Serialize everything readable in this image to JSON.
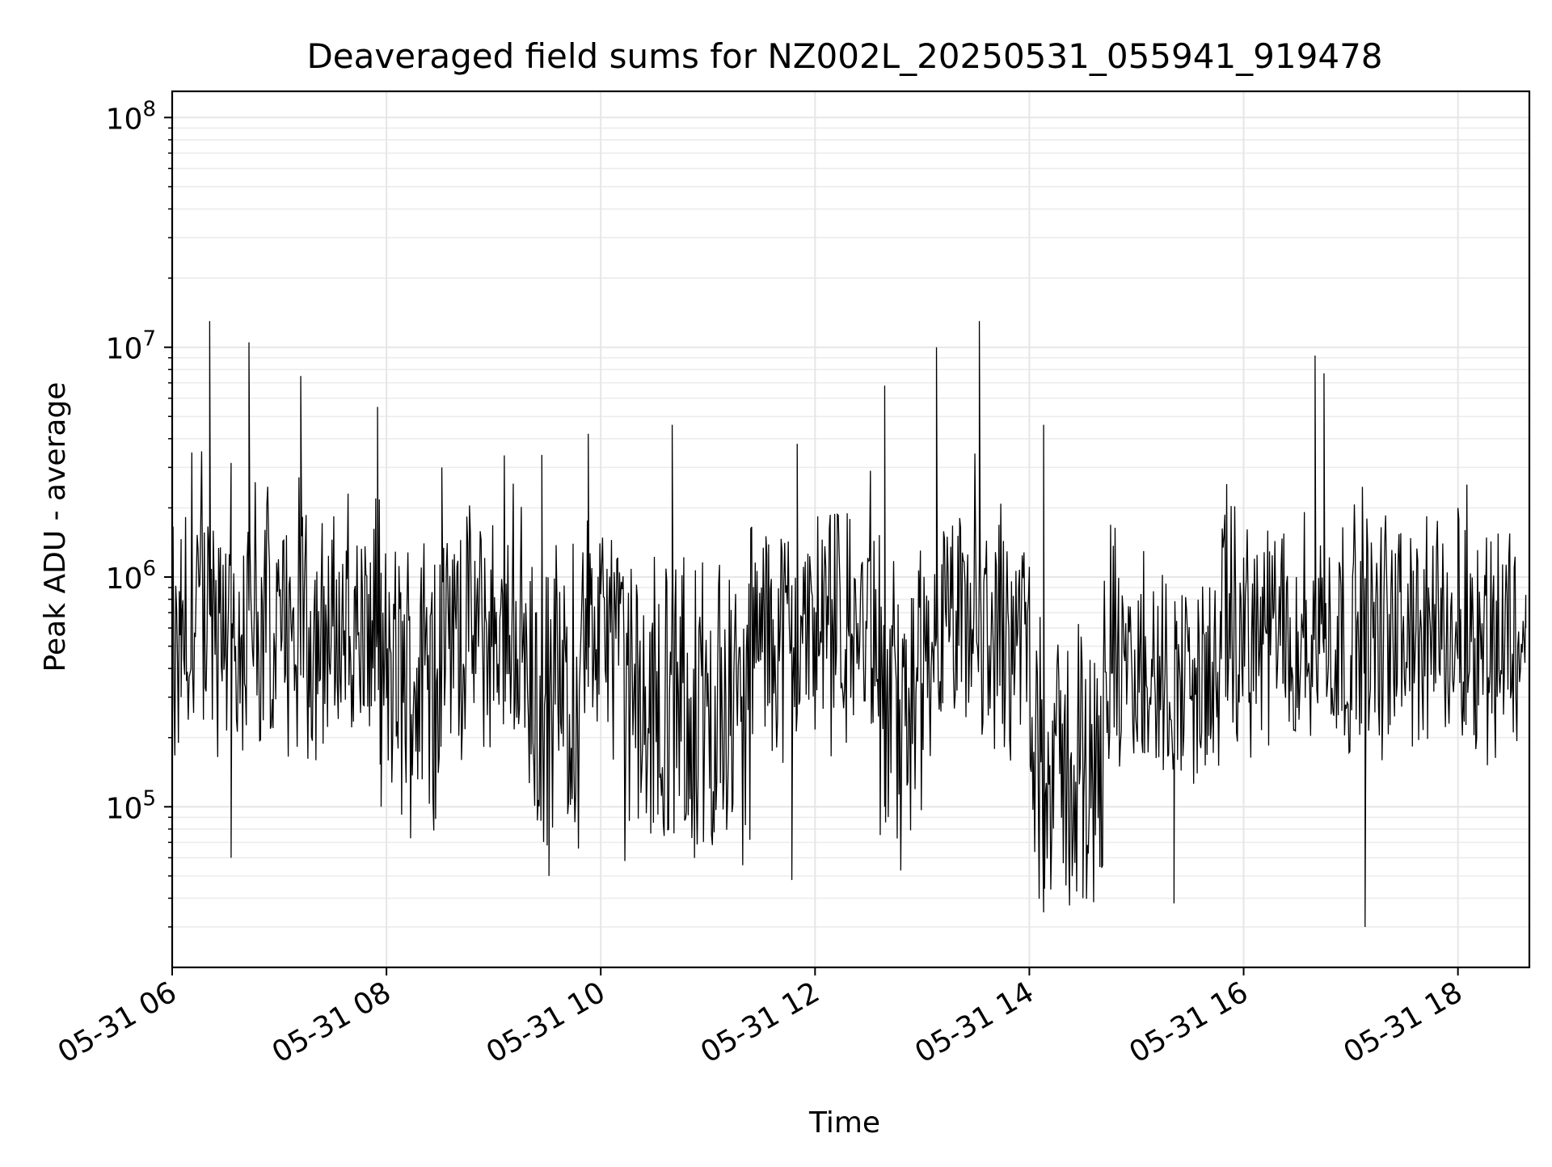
{
  "chart_data": {
    "type": "line",
    "title": "Deaveraged field sums for NZ002L_20250531_055941_919478",
    "xlabel": "Time",
    "ylabel": "Peak ADU - average",
    "yscale": "log",
    "ylim": [
      20000,
      130000000
    ],
    "xlim": [
      "2025-05-31 06:00",
      "2025-05-31 18:40"
    ],
    "grid": true,
    "line_color": "#000000",
    "x_ticks": [
      {
        "value": "2025-05-31 06:00",
        "label": "05-31 06"
      },
      {
        "value": "2025-05-31 08:00",
        "label": "05-31 08"
      },
      {
        "value": "2025-05-31 10:00",
        "label": "05-31 10"
      },
      {
        "value": "2025-05-31 12:00",
        "label": "05-31 12"
      },
      {
        "value": "2025-05-31 14:00",
        "label": "05-31 14"
      },
      {
        "value": "2025-05-31 16:00",
        "label": "05-31 16"
      },
      {
        "value": "2025-05-31 18:00",
        "label": "05-31 18"
      }
    ],
    "y_ticks": [
      {
        "value": 100000,
        "base": "10",
        "exp": "5"
      },
      {
        "value": 1000000,
        "base": "10",
        "exp": "6"
      },
      {
        "value": 10000000,
        "base": "10",
        "exp": "7"
      },
      {
        "value": 100000000,
        "base": "10",
        "exp": "8"
      }
    ],
    "envelope_note_points": [
      {
        "x": "2025-05-31 06:00",
        "y": 900000
      },
      {
        "x": "2025-05-31 06:05",
        "y": 300000
      },
      {
        "x": "2025-05-31 06:21",
        "y": 13000000
      },
      {
        "x": "2025-05-31 06:33",
        "y": 60000
      },
      {
        "x": "2025-05-31 06:43",
        "y": 10500000
      },
      {
        "x": "2025-05-31 07:12",
        "y": 7500000
      },
      {
        "x": "2025-05-31 07:55",
        "y": 5500000
      },
      {
        "x": "2025-05-31 07:57",
        "y": 100000
      },
      {
        "x": "2025-05-31 08:31",
        "y": 3000000
      },
      {
        "x": "2025-05-31 09:27",
        "y": 3400000
      },
      {
        "x": "2025-05-31 09:31",
        "y": 50000
      },
      {
        "x": "2025-05-31 09:53",
        "y": 4200000
      },
      {
        "x": "2025-05-31 10:40",
        "y": 4600000
      },
      {
        "x": "2025-05-31 11:47",
        "y": 48000
      },
      {
        "x": "2025-05-31 11:50",
        "y": 3800000
      },
      {
        "x": "2025-05-31 12:39",
        "y": 6800000
      },
      {
        "x": "2025-05-31 13:08",
        "y": 10000000
      },
      {
        "x": "2025-05-31 13:32",
        "y": 13000000
      },
      {
        "x": "2025-05-31 14:08",
        "y": 4600000
      },
      {
        "x": "2025-05-31 14:30",
        "y": 40000
      },
      {
        "x": "2025-05-31 14:50",
        "y": 700000
      },
      {
        "x": "2025-05-31 15:21",
        "y": 38000
      },
      {
        "x": "2025-05-31 16:40",
        "y": 9200000
      },
      {
        "x": "2025-05-31 16:45",
        "y": 7700000
      },
      {
        "x": "2025-05-31 17:08",
        "y": 30000
      },
      {
        "x": "2025-05-31 18:00",
        "y": 2000000
      },
      {
        "x": "2025-05-31 18:38",
        "y": 600000
      }
    ]
  }
}
